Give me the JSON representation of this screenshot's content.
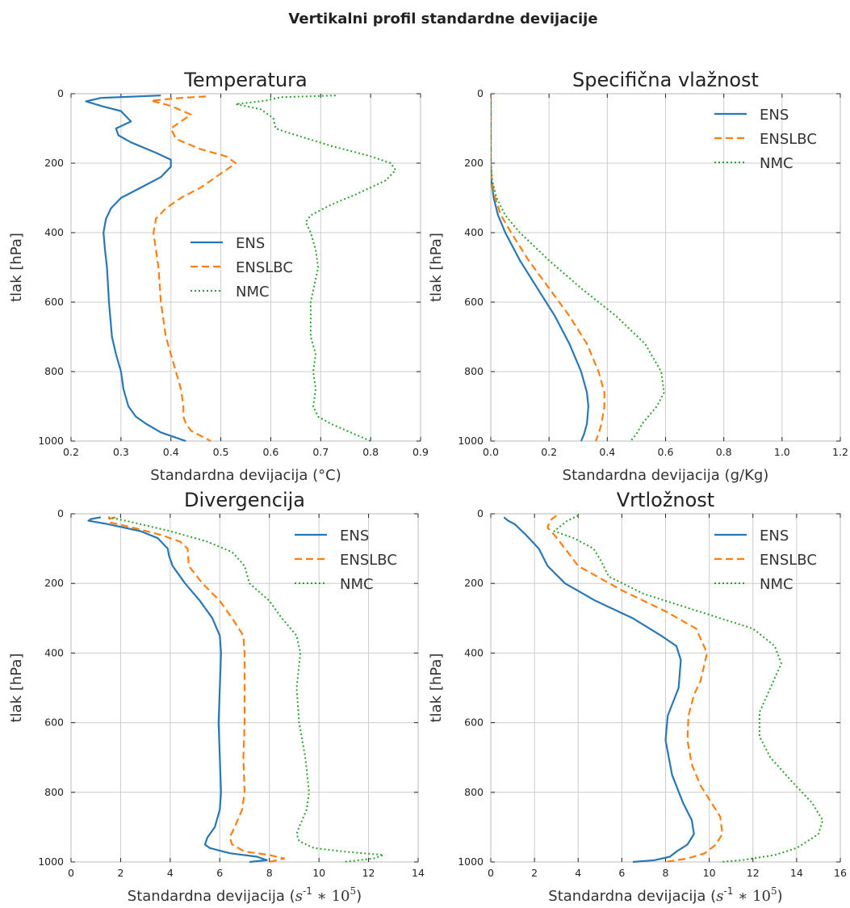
{
  "suptitle": "Vertikalni profil standardne devijacije",
  "colors": {
    "ENS": "#2878b5",
    "ENSLBC": "#ff7f0e",
    "NMC": "#2ca02c"
  },
  "chart_data": [
    {
      "type": "line",
      "title": "Temperatura",
      "xlabel": "Standardna devijacija (°C)",
      "ylabel": "tlak [hPa]",
      "xlim": [
        0.2,
        0.9
      ],
      "ylim": [
        1000,
        0
      ],
      "xticks": [
        0.2,
        0.3,
        0.4,
        0.5,
        0.6,
        0.7,
        0.8,
        0.9
      ],
      "xtick_labels": [
        "0.2",
        "0.3",
        "0.4",
        "0.5",
        "0.6",
        "0.7",
        "0.8",
        "0.9"
      ],
      "yticks": [
        0,
        200,
        400,
        600,
        800,
        1000
      ],
      "legend": "center",
      "grid": true,
      "series": [
        {
          "name": "ENS",
          "x": [
            0.38,
            0.26,
            0.23,
            0.26,
            0.3,
            0.32,
            0.29,
            0.295,
            0.32,
            0.37,
            0.4,
            0.4,
            0.38,
            0.34,
            0.3,
            0.28,
            0.27,
            0.265,
            0.268,
            0.272,
            0.276,
            0.282,
            0.29,
            0.3,
            0.305,
            0.315,
            0.33,
            0.35,
            0.38,
            0.43
          ],
          "y": [
            5,
            12,
            22,
            35,
            50,
            80,
            100,
            120,
            140,
            170,
            190,
            210,
            240,
            270,
            300,
            330,
            360,
            400,
            450,
            500,
            600,
            700,
            750,
            800,
            850,
            900,
            930,
            950,
            975,
            1000
          ]
        },
        {
          "name": "ENSLBC",
          "x": [
            0.47,
            0.42,
            0.36,
            0.4,
            0.44,
            0.4,
            0.41,
            0.46,
            0.51,
            0.53,
            0.5,
            0.46,
            0.42,
            0.39,
            0.37,
            0.365,
            0.37,
            0.375,
            0.38,
            0.39,
            0.4,
            0.41,
            0.42,
            0.425,
            0.425,
            0.43,
            0.44,
            0.46,
            0.48
          ],
          "y": [
            8,
            12,
            20,
            35,
            60,
            100,
            130,
            160,
            180,
            200,
            230,
            270,
            300,
            330,
            360,
            400,
            450,
            500,
            600,
            700,
            750,
            800,
            850,
            900,
            930,
            950,
            970,
            985,
            1000
          ]
        },
        {
          "name": "NMC",
          "x": [
            0.73,
            0.62,
            0.59,
            0.53,
            0.58,
            0.605,
            0.61,
            0.63,
            0.72,
            0.8,
            0.84,
            0.85,
            0.83,
            0.77,
            0.72,
            0.68,
            0.67,
            0.68,
            0.69,
            0.695,
            0.68,
            0.68,
            0.69,
            0.685,
            0.69,
            0.685,
            0.695,
            0.72,
            0.76,
            0.8
          ],
          "y": [
            5,
            10,
            20,
            30,
            45,
            70,
            100,
            110,
            150,
            180,
            200,
            220,
            250,
            290,
            320,
            350,
            370,
            400,
            450,
            500,
            600,
            700,
            750,
            800,
            850,
            900,
            930,
            950,
            975,
            1000
          ]
        }
      ]
    },
    {
      "type": "line",
      "title": "Specifična vlažnost",
      "xlabel": "Standardna devijacija (g/Kg)",
      "ylabel": "tlak [hPa]",
      "xlim": [
        0.0,
        1.2
      ],
      "ylim": [
        1000,
        0
      ],
      "xticks": [
        0.0,
        0.2,
        0.4,
        0.6,
        0.8,
        1.0,
        1.2
      ],
      "xtick_labels": [
        "0.0",
        "0.2",
        "0.4",
        "0.6",
        "0.8",
        "1.0",
        "1.2"
      ],
      "yticks": [
        0,
        200,
        400,
        600,
        800,
        1000
      ],
      "legend": "top-right",
      "grid": true,
      "series": [
        {
          "name": "ENS",
          "x": [
            0.0,
            0.0,
            0.002,
            0.01,
            0.025,
            0.05,
            0.1,
            0.16,
            0.22,
            0.27,
            0.31,
            0.33,
            0.335,
            0.33,
            0.32,
            0.31
          ],
          "y": [
            0,
            200,
            250,
            300,
            350,
            400,
            480,
            560,
            640,
            720,
            800,
            860,
            900,
            950,
            980,
            1000
          ]
        },
        {
          "name": "ENSLBC",
          "x": [
            0.0,
            0.0,
            0.003,
            0.015,
            0.035,
            0.07,
            0.13,
            0.2,
            0.27,
            0.33,
            0.37,
            0.39,
            0.39,
            0.38,
            0.37,
            0.36
          ],
          "y": [
            0,
            200,
            250,
            300,
            350,
            400,
            480,
            560,
            640,
            720,
            800,
            860,
            900,
            950,
            980,
            1000
          ]
        },
        {
          "name": "NMC",
          "x": [
            0.0,
            0.0,
            0.005,
            0.02,
            0.05,
            0.1,
            0.2,
            0.31,
            0.43,
            0.53,
            0.585,
            0.595,
            0.57,
            0.52,
            0.5,
            0.48
          ],
          "y": [
            0,
            200,
            250,
            300,
            350,
            400,
            480,
            560,
            640,
            720,
            800,
            860,
            900,
            950,
            980,
            1000
          ]
        }
      ]
    },
    {
      "type": "line",
      "title": "Divergencija",
      "xlabel": "Standardna devijacija ($s^{-1} * 10^5$)",
      "ylabel": "tlak [hPa]",
      "xlim": [
        0,
        14
      ],
      "ylim": [
        1000,
        0
      ],
      "xticks": [
        0,
        2,
        4,
        6,
        8,
        10,
        12,
        14
      ],
      "xtick_labels": [
        "0",
        "2",
        "4",
        "6",
        "8",
        "10",
        "12",
        "14"
      ],
      "yticks": [
        0,
        200,
        400,
        600,
        800,
        1000
      ],
      "legend": "top-right",
      "grid": true,
      "series": [
        {
          "name": "ENS",
          "x": [
            1.2,
            0.8,
            0.7,
            1.5,
            2.8,
            3.5,
            3.9,
            3.95,
            4.1,
            4.6,
            5.2,
            5.7,
            6.0,
            6.05,
            6.0,
            5.95,
            6.0,
            6.05,
            6.0,
            5.8,
            5.5,
            5.4,
            5.6,
            6.4,
            7.5,
            7.9,
            7.2
          ],
          "y": [
            10,
            15,
            20,
            30,
            50,
            70,
            100,
            120,
            150,
            200,
            250,
            300,
            350,
            400,
            500,
            600,
            700,
            800,
            850,
            900,
            930,
            950,
            960,
            975,
            985,
            995,
            1000
          ]
        },
        {
          "name": "ENSLBC",
          "x": [
            1.8,
            1.5,
            1.6,
            2.5,
            3.6,
            4.4,
            4.7,
            4.75,
            5.3,
            6.0,
            6.5,
            6.95,
            7.0,
            7.0,
            6.95,
            7.0,
            6.9,
            6.6,
            6.4,
            6.5,
            7.0,
            8.0,
            8.6,
            8.0
          ],
          "y": [
            10,
            15,
            25,
            40,
            60,
            80,
            100,
            150,
            200,
            250,
            300,
            350,
            400,
            600,
            700,
            800,
            850,
            900,
            930,
            950,
            970,
            980,
            990,
            1000
          ]
        },
        {
          "name": "NMC",
          "x": [
            1.5,
            2.2,
            2.8,
            4.0,
            5.5,
            6.5,
            7.0,
            7.2,
            8.0,
            8.5,
            9.1,
            9.25,
            9.1,
            9.2,
            9.45,
            9.6,
            9.5,
            9.2,
            9.1,
            9.2,
            9.8,
            11.0,
            12.6,
            12.2,
            11.0
          ],
          "y": [
            10,
            20,
            30,
            50,
            80,
            110,
            150,
            200,
            250,
            300,
            350,
            400,
            500,
            600,
            700,
            800,
            850,
            900,
            920,
            940,
            960,
            970,
            980,
            990,
            1000
          ]
        }
      ]
    },
    {
      "type": "line",
      "title": "Vrtložnost",
      "xlabel": "Standardna devijacija ($s^{-1} * 10^5$)",
      "ylabel": "tlak [hPa]",
      "xlim": [
        0,
        16
      ],
      "ylim": [
        1000,
        0
      ],
      "xticks": [
        0,
        2,
        4,
        6,
        8,
        10,
        12,
        14,
        16
      ],
      "xtick_labels": [
        "0",
        "2",
        "4",
        "6",
        "8",
        "10",
        "12",
        "14",
        "16"
      ],
      "yticks": [
        0,
        200,
        400,
        600,
        800,
        1000
      ],
      "legend": "top-right",
      "grid": true,
      "series": [
        {
          "name": "ENS",
          "x": [
            0.6,
            0.8,
            1.1,
            1.6,
            2.2,
            2.6,
            3.4,
            4.8,
            6.5,
            7.8,
            8.5,
            8.7,
            8.6,
            8.1,
            8.0,
            8.3,
            8.8,
            9.2,
            9.3,
            9.0,
            8.5,
            8.2,
            7.5,
            6.5
          ],
          "y": [
            10,
            20,
            30,
            60,
            100,
            150,
            200,
            250,
            300,
            350,
            380,
            420,
            500,
            580,
            650,
            750,
            830,
            880,
            920,
            950,
            970,
            985,
            995,
            1000
          ]
        },
        {
          "name": "ENSLBC",
          "x": [
            3.0,
            2.7,
            2.6,
            2.9,
            3.4,
            4.0,
            6.0,
            8.0,
            9.4,
            9.9,
            9.6,
            9.3,
            9.05,
            9.0,
            9.2,
            9.6,
            10.0,
            10.5,
            10.6,
            10.3,
            9.8,
            9.0,
            8.0
          ],
          "y": [
            5,
            20,
            40,
            60,
            100,
            150,
            220,
            280,
            330,
            400,
            480,
            520,
            580,
            650,
            720,
            780,
            820,
            870,
            920,
            950,
            975,
            990,
            1000
          ]
        },
        {
          "name": "NMC",
          "x": [
            4.0,
            3.5,
            2.9,
            3.8,
            4.7,
            5.0,
            5.4,
            7.0,
            9.5,
            12.0,
            13.0,
            13.3,
            12.8,
            12.3,
            12.3,
            12.8,
            13.8,
            14.7,
            15.2,
            15.0,
            14.0,
            13.0,
            11.5,
            10.5
          ],
          "y": [
            5,
            20,
            50,
            70,
            100,
            130,
            180,
            230,
            280,
            330,
            380,
            430,
            500,
            570,
            640,
            700,
            770,
            830,
            880,
            920,
            960,
            980,
            995,
            1000
          ]
        }
      ]
    }
  ]
}
